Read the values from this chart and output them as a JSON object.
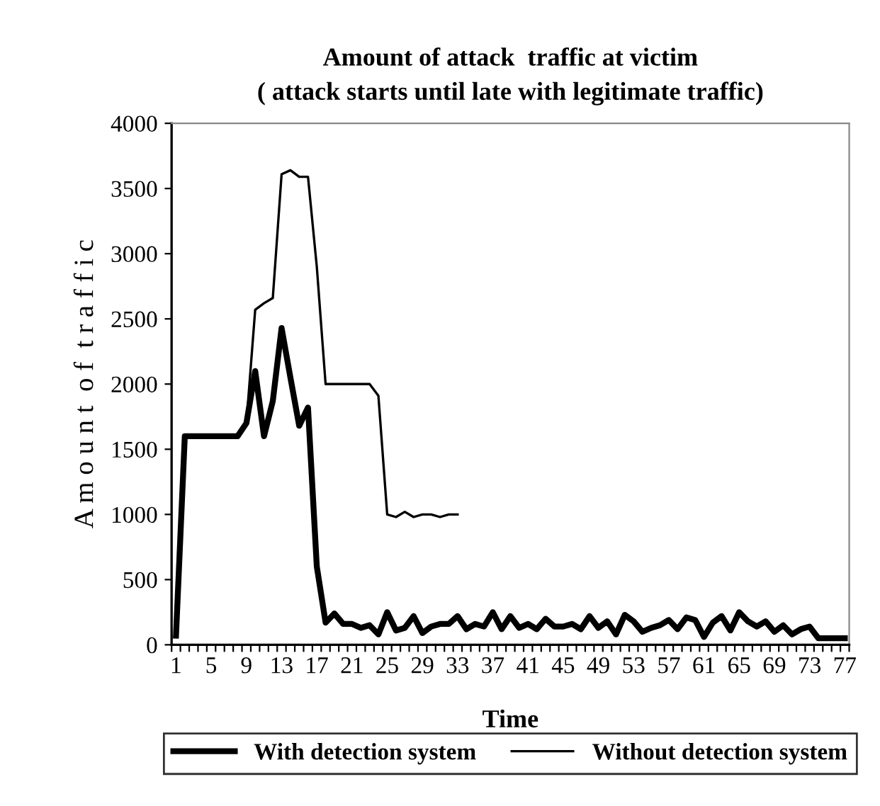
{
  "chart_data": {
    "type": "line",
    "title": "Amount of attack  traffic at victim\n( attack starts until late with legitimate traffic)",
    "xlabel": "Time",
    "ylabel": "A m o u n t  o f  t r a f f i c",
    "categories": [
      "1",
      null,
      null,
      null,
      "5",
      null,
      null,
      null,
      "9",
      null,
      null,
      null,
      "13",
      null,
      null,
      null,
      "17",
      null,
      null,
      null,
      "21",
      null,
      null,
      null,
      "25",
      null,
      null,
      null,
      "29",
      null,
      null,
      null,
      "33",
      null,
      null,
      null,
      "37",
      null,
      null,
      null,
      "41",
      null,
      null,
      null,
      "45",
      null,
      null,
      null,
      "49",
      null,
      null,
      null,
      "53",
      null,
      null,
      null,
      "57",
      null,
      null,
      null,
      "61",
      null,
      null,
      null,
      "65",
      null,
      null,
      null,
      "69",
      null,
      null,
      null,
      "73",
      null,
      null,
      null,
      "77"
    ],
    "series": [
      {
        "name": "With detection system",
        "color": "#000000",
        "values": [
          70,
          1600,
          1600,
          1600,
          1600,
          1600,
          1600,
          1600,
          1700,
          2100,
          1600,
          1870,
          2430,
          2050,
          1680,
          1820,
          600,
          170,
          240,
          160,
          160,
          130,
          150,
          80,
          250,
          110,
          130,
          220,
          90,
          140,
          160,
          160,
          220,
          120,
          160,
          140,
          250,
          120,
          220,
          130,
          160,
          120,
          200,
          140,
          140,
          160,
          120,
          220,
          130,
          180,
          80,
          230,
          180,
          100,
          130,
          150,
          190,
          120,
          210,
          190,
          60,
          170,
          220,
          110,
          250,
          180,
          140,
          180,
          100,
          150,
          80,
          120,
          140,
          50,
          50,
          50,
          50
        ]
      },
      {
        "name": "Without detection system",
        "color": "#000000",
        "values": [
          70,
          1600,
          1600,
          1600,
          1600,
          1600,
          1600,
          1600,
          1700,
          2570,
          2620,
          2660,
          3610,
          3640,
          3590,
          3590,
          2900,
          2000,
          2000,
          2000,
          2000,
          2000,
          2000,
          1910,
          1000,
          980,
          1020,
          980,
          1000,
          1000,
          980,
          1000,
          1000,
          null,
          null,
          null,
          null,
          null,
          null,
          null,
          null,
          null,
          null,
          null,
          null,
          null,
          null,
          null,
          null,
          null,
          null,
          null,
          null,
          null,
          null,
          null,
          null,
          null,
          null,
          null,
          null,
          null,
          null,
          null,
          null,
          null,
          null,
          null,
          null,
          null,
          null,
          null,
          null,
          null,
          null,
          null,
          null
        ]
      }
    ],
    "ylim": [
      0,
      4000
    ],
    "yticks": [
      0,
      500,
      1000,
      1500,
      2000,
      2500,
      3000,
      3500,
      4000
    ],
    "grid": false,
    "legend": "bottom",
    "marker": "none",
    "line_style": "solid"
  }
}
